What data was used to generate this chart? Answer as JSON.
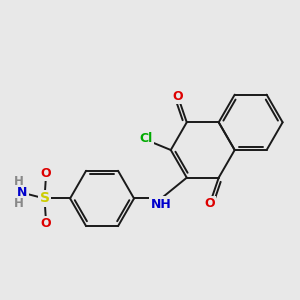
{
  "bg": "#e8e8e8",
  "bc": "#1a1a1a",
  "bw": 1.4,
  "colors": {
    "O": "#dd0000",
    "N": "#0000cc",
    "S": "#cccc00",
    "Cl": "#00aa00",
    "H": "#888888"
  },
  "fs": 9.0,
  "figsize": [
    3.0,
    3.0
  ],
  "dpi": 100,
  "xlim": [
    -3.8,
    5.5
  ],
  "ylim": [
    -1.8,
    3.8
  ]
}
